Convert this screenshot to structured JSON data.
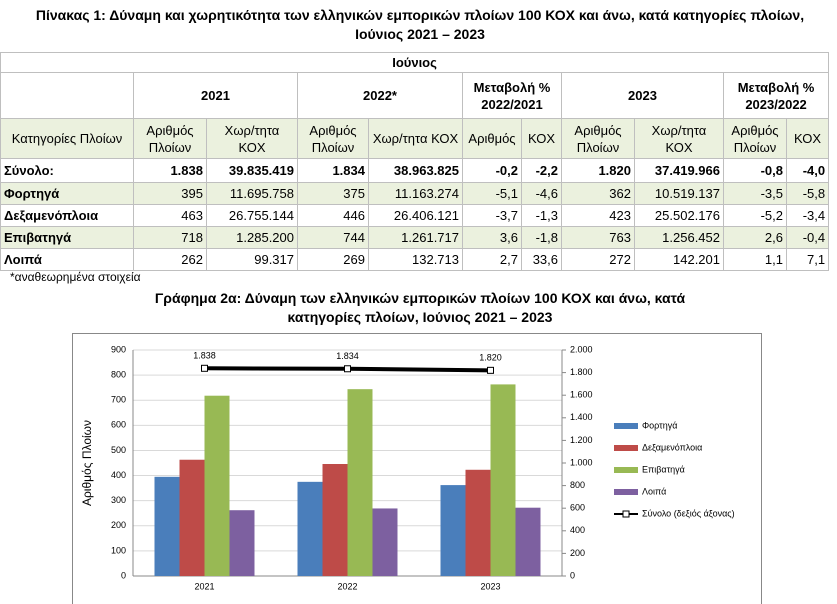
{
  "table": {
    "title": "Πίνακας 1: Δύναμη και χωρητικότητα των ελληνικών εμπορικών πλοίων 100 ΚΟΧ και άνω, κατά κατηγορίες πλοίων, Ιούνιος 2021 – 2023",
    "group": "Ιούνιος",
    "headers": [
      "2021",
      "2022*",
      "Μεταβολή % 2022/2021",
      "2023",
      "Μεταβολή % 2023/2022"
    ],
    "subheaders": [
      "Κατηγορίες Πλοίων",
      "Αριθμός Πλοίων",
      "Χωρ/τητα ΚΟΧ",
      "Αριθμός Πλοίων",
      "Χωρ/τητα ΚΟΧ",
      "Αριθμός",
      "ΚΟΧ",
      "Αριθμός Πλοίων",
      "Χωρ/τητα ΚΟΧ",
      "Αριθμός Πλοίων",
      "ΚΟΧ"
    ],
    "rows": [
      [
        "Σύνολο:",
        "1.838",
        "39.835.419",
        "1.834",
        "38.963.825",
        "-0,2",
        "-2,2",
        "1.820",
        "37.419.966",
        "-0,8",
        "-4,0"
      ],
      [
        "Φορτηγά",
        "395",
        "11.695.758",
        "375",
        "11.163.274",
        "-5,1",
        "-4,6",
        "362",
        "10.519.137",
        "-3,5",
        "-5,8"
      ],
      [
        "Δεξαμενόπλοια",
        "463",
        "26.755.144",
        "446",
        "26.406.121",
        "-3,7",
        "-1,3",
        "423",
        "25.502.176",
        "-5,2",
        "-3,4"
      ],
      [
        "Επιβατηγά",
        "718",
        "1.285.200",
        "744",
        "1.261.717",
        "3,6",
        "-1,8",
        "763",
        "1.256.452",
        "2,6",
        "-0,4"
      ],
      [
        "Λοιπά",
        "262",
        "99.317",
        "269",
        "132.713",
        "2,7",
        "33,6",
        "272",
        "142.201",
        "1,1",
        "7,1"
      ]
    ],
    "footnote": "*αναθεωρημένα στοιχεία"
  },
  "chart_data": {
    "type": "bar",
    "title": "Γράφημα 2α: Δύναμη των ελληνικών εμπορικών πλοίων 100 ΚΟΧ και άνω, κατά κατηγορίες πλοίων, Ιούνιος 2021 – 2023",
    "ylabel": "Αριθμός Πλοίων",
    "categories": [
      "2021",
      "2022",
      "2023"
    ],
    "series": [
      {
        "name": "Φορτηγά",
        "color": "#4a7ebb",
        "values": [
          395,
          375,
          362
        ]
      },
      {
        "name": "Δεξαμενόπλοια",
        "color": "#be4b48",
        "values": [
          463,
          446,
          423
        ]
      },
      {
        "name": "Επιβατηγά",
        "color": "#98b954",
        "values": [
          718,
          744,
          763
        ]
      },
      {
        "name": "Λοιπά",
        "color": "#7d60a0",
        "values": [
          262,
          269,
          272
        ]
      },
      {
        "name": "Σύνολο (δεξιός άξονας)",
        "type": "line",
        "axis": "y2",
        "color": "#000000",
        "values": [
          1838,
          1834,
          1820
        ],
        "value_labels": [
          "1.838",
          "1.834",
          "1.820"
        ]
      }
    ],
    "ylim": [
      0,
      900
    ],
    "yticks": [
      0,
      100,
      200,
      300,
      400,
      500,
      600,
      700,
      800,
      900
    ],
    "y2lim": [
      0,
      2000
    ],
    "y2ticks": [
      0,
      200,
      400,
      600,
      800,
      {
        "value": 1000,
        "label": "1.000"
      },
      {
        "value": 1200,
        "label": "1.200"
      },
      {
        "value": 1400,
        "label": "1.400"
      },
      {
        "value": 1600,
        "label": "1.600"
      },
      {
        "value": 1800,
        "label": "1.800"
      },
      {
        "value": 2000,
        "label": "2.000"
      }
    ],
    "grid": true,
    "legend": "right"
  }
}
